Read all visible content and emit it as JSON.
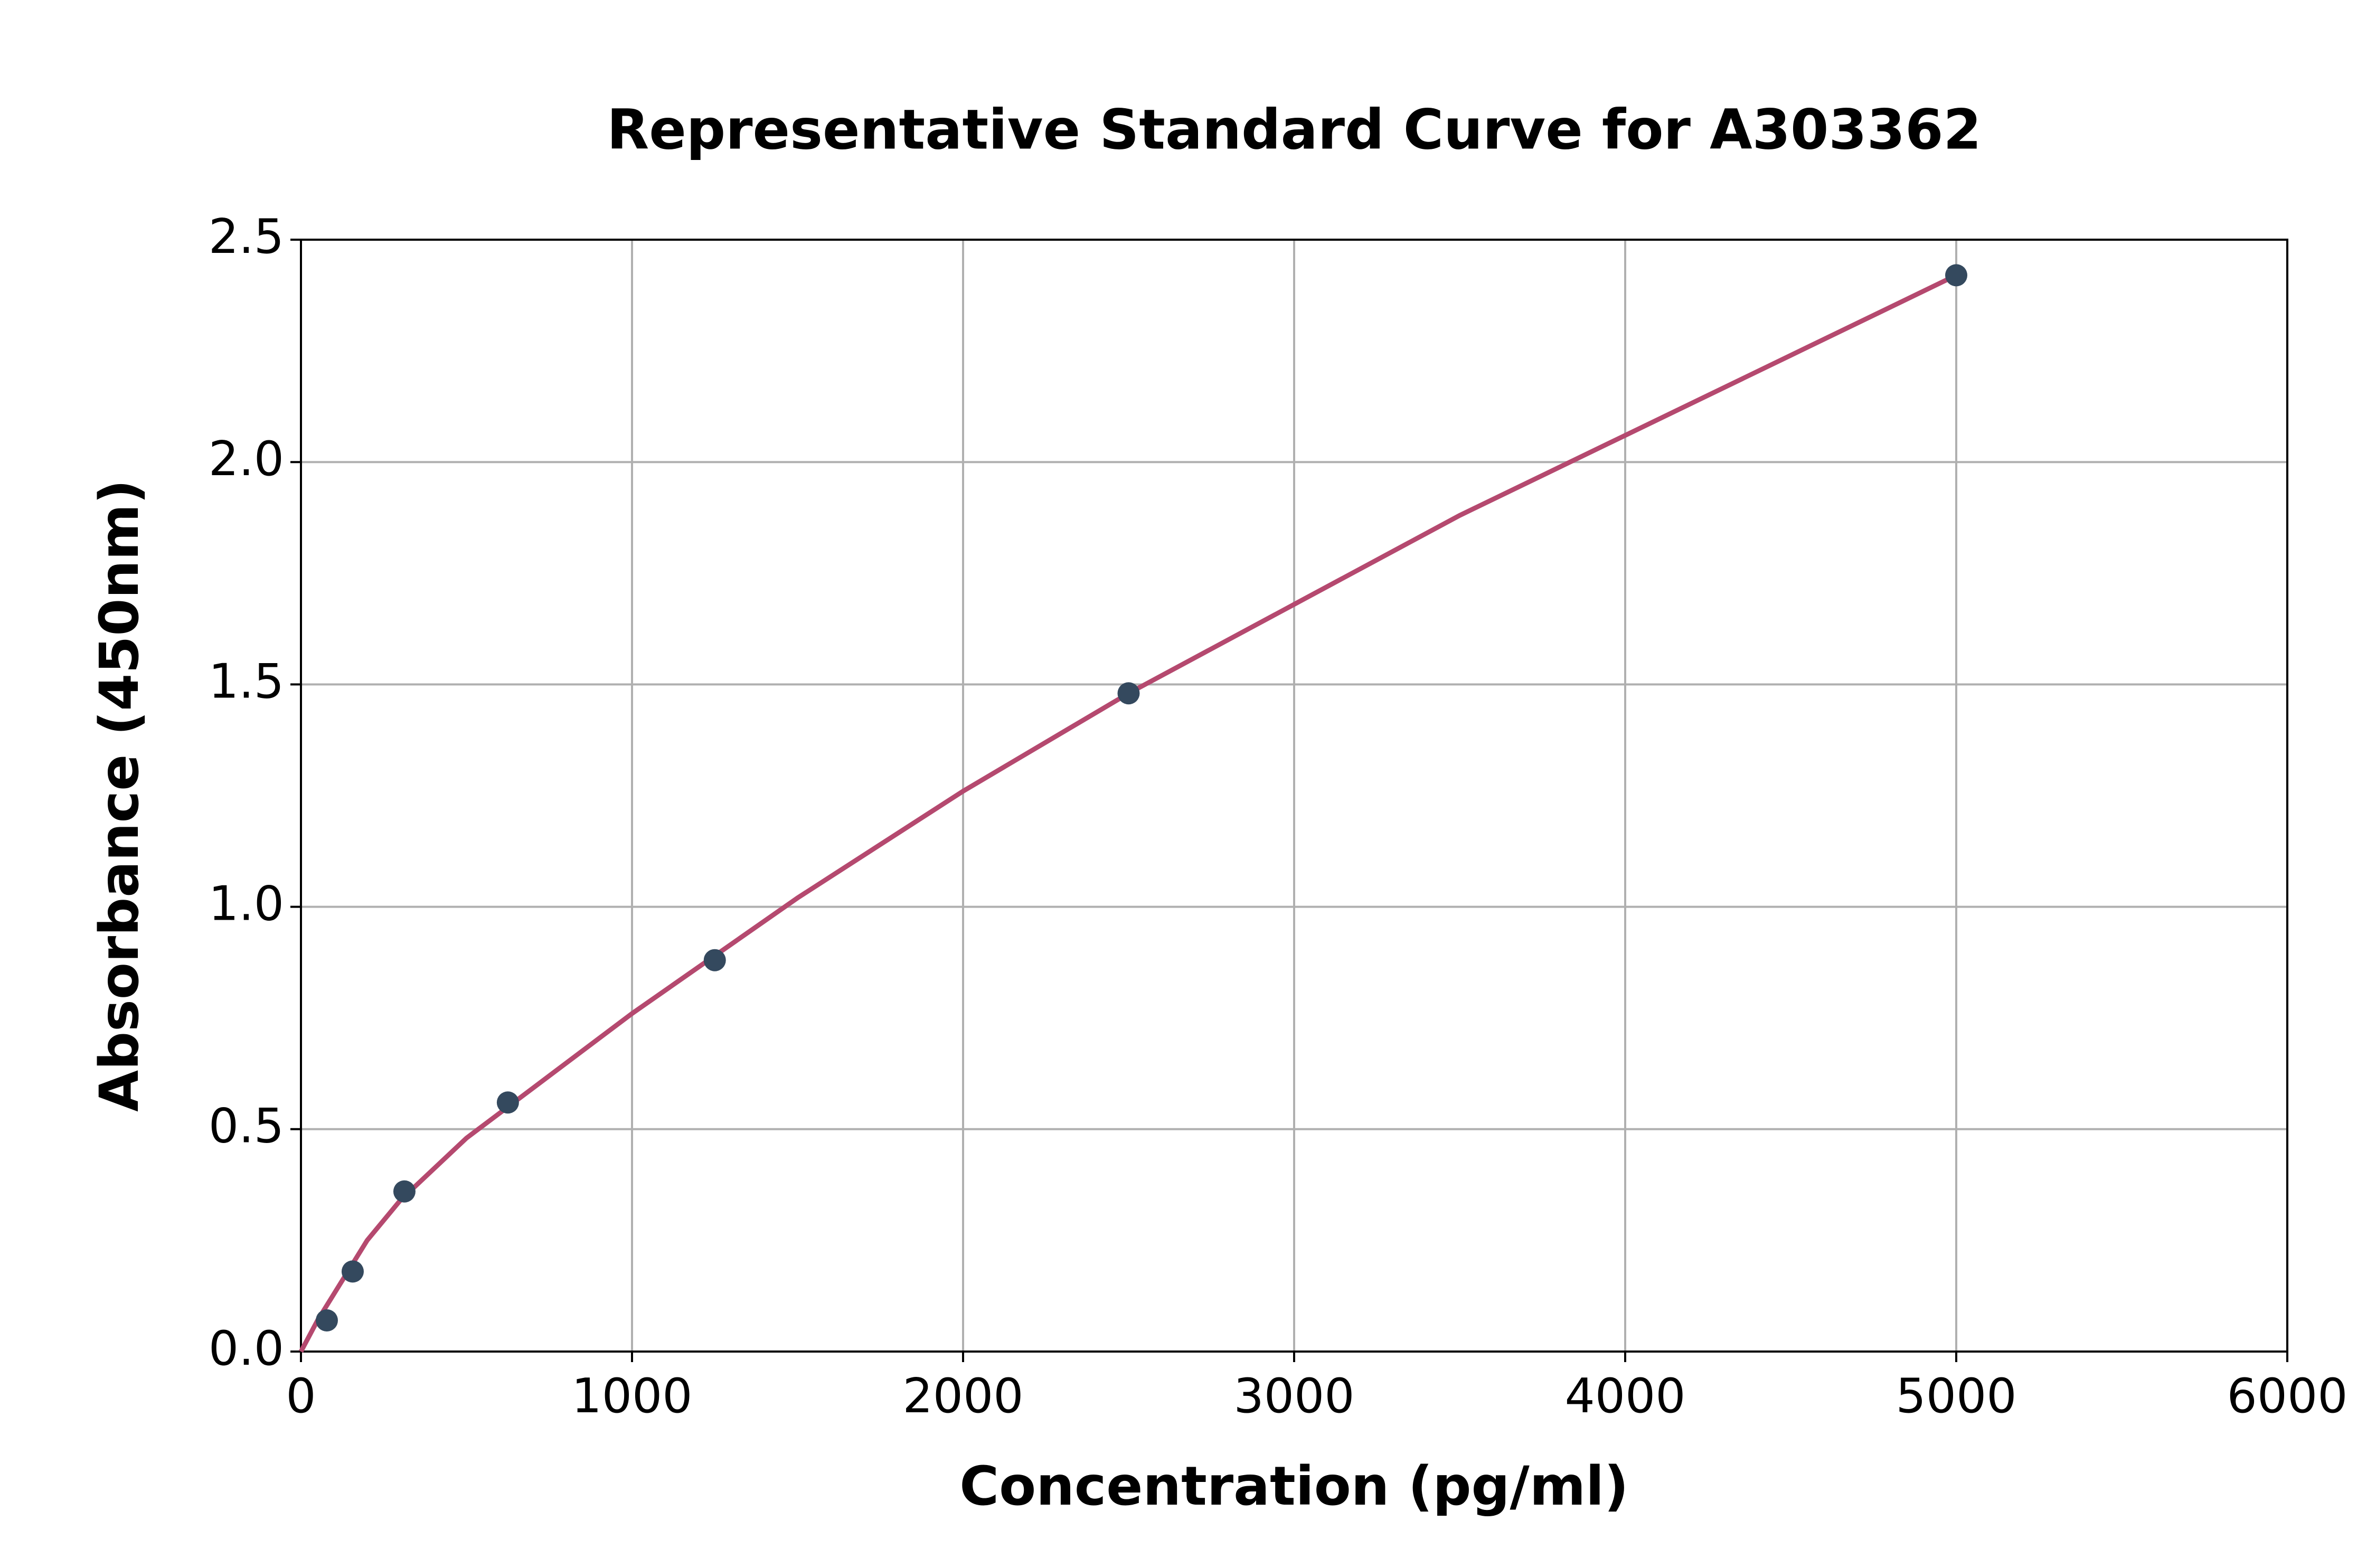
{
  "chart_data": {
    "type": "scatter",
    "title": "Representative Standard Curve for A303362",
    "x_label": "Concentration (pg/ml)",
    "y_label": "Absorbance (450nm)",
    "series": [
      {
        "color": "#34495e",
        "x": [
          78.125,
          156.25,
          312.5,
          625,
          1250,
          2500,
          5000
        ],
        "values": [
          0.07,
          0.18,
          0.36,
          0.56,
          0.88,
          1.48,
          2.42
        ]
      }
    ],
    "curve": {
      "color": "#b5496f",
      "x": [
        0,
        50,
        100,
        200,
        300,
        500,
        625,
        1000,
        1500,
        2000,
        2500,
        3000,
        3500,
        4000,
        4500,
        5000
      ],
      "values": [
        0,
        0.07,
        0.13,
        0.25,
        0.34,
        0.48,
        0.55,
        0.76,
        1.02,
        1.26,
        1.48,
        1.68,
        1.88,
        2.06,
        2.24,
        2.42
      ]
    },
    "xlim": [
      0,
      6000
    ],
    "xticks": [
      0,
      1000,
      2000,
      3000,
      4000,
      5000,
      6000
    ],
    "ylim": [
      0,
      2.5
    ],
    "yticks": [
      {
        "value": 0,
        "label": "0.0"
      },
      0.5,
      {
        "value": 1,
        "label": "1.0"
      },
      1.5,
      {
        "value": 2,
        "label": "2.0"
      },
      2.5
    ],
    "grid": true
  }
}
